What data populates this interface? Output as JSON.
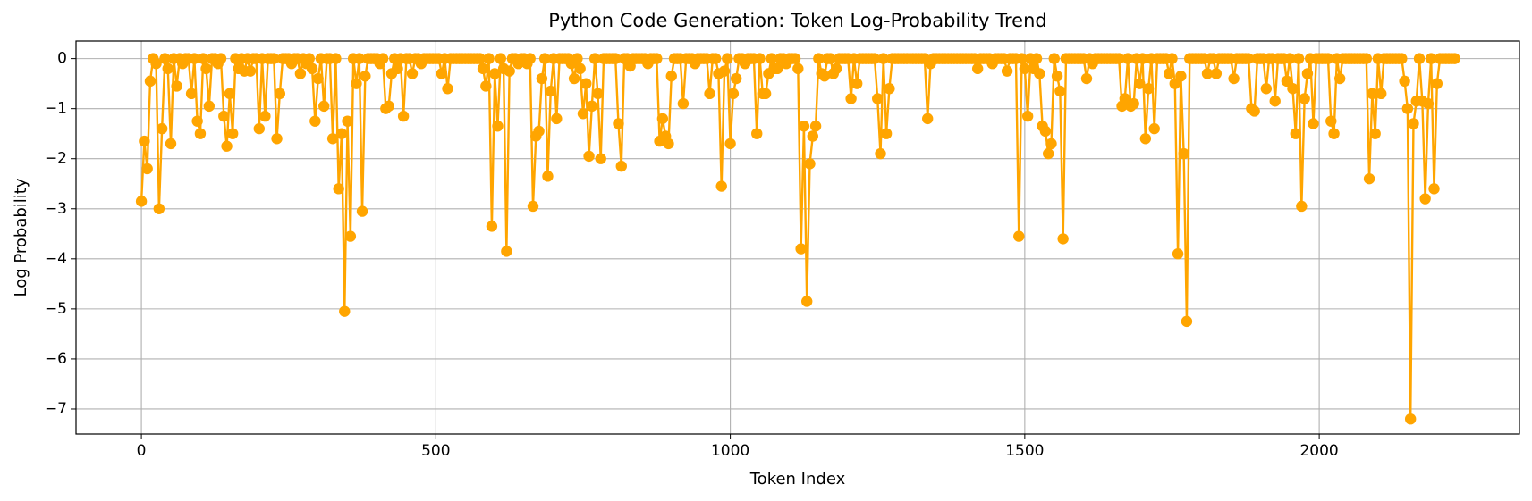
{
  "chart_data": {
    "type": "line",
    "title": "Python Code Generation: Token Log-Probability Trend",
    "x_label": "Token Index",
    "y_label": "Log Probability",
    "color": "#ffa500",
    "grid": true,
    "xlim": [
      -111,
      2340
    ],
    "ylim": [
      -7.5,
      0.35
    ],
    "xticks": [
      0,
      500,
      1000,
      1500,
      2000
    ],
    "yticks": [
      0,
      {
        "value": -1,
        "label": "−1"
      },
      {
        "value": -2,
        "label": "−2"
      },
      {
        "value": -3,
        "label": "−3"
      },
      {
        "value": -4,
        "label": "−4"
      },
      {
        "value": -5,
        "label": "−5"
      },
      {
        "value": -6,
        "label": "−6"
      },
      {
        "value": -7,
        "label": "−7"
      }
    ],
    "x": [
      0,
      5,
      10,
      15,
      20,
      25,
      30,
      35,
      40,
      45,
      50,
      55,
      60,
      65,
      70,
      75,
      80,
      85,
      90,
      95,
      100,
      105,
      110,
      115,
      120,
      125,
      130,
      135,
      140,
      145,
      150,
      155,
      160,
      165,
      170,
      175,
      180,
      185,
      190,
      195,
      200,
      205,
      210,
      215,
      220,
      225,
      230,
      235,
      240,
      245,
      250,
      255,
      260,
      265,
      270,
      275,
      280,
      285,
      290,
      295,
      300,
      305,
      310,
      315,
      320,
      325,
      330,
      335,
      340,
      345,
      350,
      355,
      360,
      365,
      370,
      375,
      380,
      385,
      390,
      395,
      400,
      405,
      410,
      415,
      420,
      425,
      430,
      435,
      440,
      445,
      450,
      455,
      460,
      465,
      470,
      475,
      480,
      485,
      490,
      495,
      500,
      505,
      510,
      515,
      520,
      525,
      530,
      535,
      540,
      545,
      550,
      555,
      560,
      565,
      570,
      575,
      580,
      585,
      590,
      595,
      600,
      605,
      610,
      615,
      620,
      625,
      630,
      635,
      640,
      645,
      650,
      655,
      660,
      665,
      670,
      675,
      680,
      685,
      690,
      695,
      700,
      705,
      710,
      715,
      720,
      725,
      730,
      735,
      740,
      745,
      750,
      755,
      760,
      765,
      770,
      775,
      780,
      785,
      790,
      795,
      800,
      805,
      810,
      815,
      820,
      825,
      830,
      835,
      840,
      845,
      850,
      855,
      860,
      865,
      870,
      875,
      880,
      885,
      890,
      895,
      900,
      905,
      910,
      915,
      920,
      925,
      930,
      935,
      940,
      945,
      950,
      955,
      960,
      965,
      970,
      975,
      980,
      985,
      990,
      995,
      1000,
      1005,
      1010,
      1015,
      1020,
      1025,
      1030,
      1035,
      1040,
      1045,
      1050,
      1055,
      1060,
      1065,
      1070,
      1075,
      1080,
      1085,
      1090,
      1095,
      1100,
      1105,
      1110,
      1115,
      1120,
      1125,
      1130,
      1135,
      1140,
      1145,
      1150,
      1155,
      1160,
      1165,
      1170,
      1175,
      1180,
      1185,
      1190,
      1195,
      1200,
      1205,
      1210,
      1215,
      1220,
      1225,
      1230,
      1235,
      1240,
      1245,
      1250,
      1255,
      1260,
      1265,
      1270,
      1275,
      1280,
      1285,
      1290,
      1295,
      1300,
      1305,
      1310,
      1315,
      1320,
      1325,
      1330,
      1335,
      1340,
      1345,
      1350,
      1355,
      1360,
      1365,
      1370,
      1375,
      1380,
      1385,
      1390,
      1395,
      1400,
      1405,
      1410,
      1415,
      1420,
      1425,
      1430,
      1435,
      1440,
      1445,
      1450,
      1455,
      1460,
      1465,
      1470,
      1475,
      1480,
      1485,
      1490,
      1495,
      1500,
      1505,
      1510,
      1515,
      1520,
      1525,
      1530,
      1535,
      1540,
      1545,
      1550,
      1555,
      1560,
      1565,
      1570,
      1575,
      1580,
      1585,
      1590,
      1595,
      1600,
      1605,
      1610,
      1615,
      1620,
      1625,
      1630,
      1635,
      1640,
      1645,
      1650,
      1655,
      1660,
      1665,
      1670,
      1675,
      1680,
      1685,
      1690,
      1695,
      1700,
      1705,
      1710,
      1715,
      1720,
      1725,
      1730,
      1735,
      1740,
      1745,
      1750,
      1755,
      1760,
      1765,
      1770,
      1775,
      1780,
      1785,
      1790,
      1795,
      1800,
      1805,
      1810,
      1815,
      1820,
      1825,
      1830,
      1835,
      1840,
      1845,
      1850,
      1855,
      1860,
      1865,
      1870,
      1875,
      1880,
      1885,
      1890,
      1895,
      1900,
      1905,
      1910,
      1915,
      1920,
      1925,
      1930,
      1935,
      1940,
      1945,
      1950,
      1955,
      1960,
      1965,
      1970,
      1975,
      1980,
      1985,
      1990,
      1995,
      2000,
      2005,
      2010,
      2015,
      2020,
      2025,
      2030,
      2035,
      2040,
      2045,
      2050,
      2055,
      2060,
      2065,
      2070,
      2075,
      2080,
      2085,
      2090,
      2095,
      2100,
      2105,
      2110,
      2115,
      2120,
      2125,
      2130,
      2135,
      2140,
      2145,
      2150,
      2155,
      2160,
      2165,
      2170,
      2175,
      2180,
      2185,
      2190,
      2195,
      2200,
      2205,
      2210,
      2215,
      2220,
      2225,
      2230
    ],
    "values": [
      -2.85,
      -1.65,
      -2.2,
      -0.45,
      0,
      -0.1,
      -3.0,
      -1.4,
      0,
      -0.2,
      -1.7,
      0,
      -0.55,
      0,
      -0.1,
      0,
      0,
      -0.7,
      0,
      -1.25,
      -1.5,
      0,
      -0.2,
      -0.95,
      0,
      0,
      -0.1,
      0,
      -1.15,
      -1.75,
      -0.7,
      -1.5,
      0,
      -0.2,
      0,
      -0.25,
      0,
      -0.25,
      0,
      0,
      -1.4,
      0,
      -1.15,
      0,
      0,
      0,
      -1.6,
      -0.7,
      0,
      0,
      0,
      -0.1,
      0,
      0,
      -0.3,
      0,
      -0.1,
      0,
      -0.2,
      -1.25,
      -0.4,
      0,
      -0.95,
      0,
      0,
      -1.6,
      0,
      -2.6,
      -1.5,
      -5.05,
      -1.25,
      -3.55,
      0,
      -0.5,
      0,
      -3.05,
      -0.35,
      0,
      0,
      0,
      0,
      -0.1,
      0,
      -1.0,
      -0.95,
      -0.3,
      0,
      -0.2,
      0,
      -1.15,
      0,
      0,
      -0.3,
      0,
      0,
      -0.1,
      0,
      0,
      0,
      0,
      0,
      0,
      -0.3,
      0,
      -0.6,
      0,
      0,
      0,
      0,
      0,
      0,
      0,
      0,
      0,
      0,
      0,
      -0.2,
      -0.55,
      0,
      -3.35,
      -0.3,
      -1.35,
      0,
      -0.2,
      -3.85,
      -0.25,
      0,
      0,
      -0.1,
      0,
      0,
      -0.1,
      0,
      -2.95,
      -1.55,
      -1.45,
      -0.4,
      0,
      -2.35,
      -0.65,
      0,
      -1.2,
      0,
      0,
      0,
      0,
      -0.1,
      -0.4,
      0,
      -0.2,
      -1.1,
      -0.5,
      -1.95,
      -0.95,
      0,
      -0.7,
      -2.0,
      0,
      0,
      0,
      0,
      0,
      -1.3,
      -2.15,
      0,
      0,
      -0.15,
      0,
      0,
      0,
      0,
      0,
      -0.1,
      0,
      0,
      0,
      -1.65,
      -1.2,
      -1.55,
      -1.7,
      -0.35,
      0,
      0,
      0,
      -0.9,
      0,
      0,
      0,
      -0.1,
      0,
      0,
      0,
      0,
      -0.7,
      0,
      0,
      -0.3,
      -2.55,
      -0.25,
      0,
      -1.7,
      -0.7,
      -0.4,
      0,
      0,
      -0.1,
      0,
      0,
      0,
      -1.5,
      0,
      -0.7,
      -0.7,
      -0.3,
      0,
      -0.2,
      -0.2,
      0,
      0,
      -0.1,
      0,
      0,
      0,
      -0.2,
      -3.8,
      -1.35,
      -4.85,
      -2.1,
      -1.55,
      -1.35,
      0,
      -0.3,
      -0.35,
      0,
      0,
      -0.3,
      -0.2,
      0,
      0,
      0,
      0,
      -0.8,
      0,
      -0.5,
      0,
      0,
      0,
      0,
      0,
      0,
      -0.8,
      -1.9,
      0,
      -1.5,
      -0.6,
      0,
      0,
      0,
      0,
      0,
      0,
      0,
      0,
      0,
      0,
      0,
      0,
      -1.2,
      -0.1,
      0,
      0,
      0,
      0,
      0,
      0,
      0,
      0,
      0,
      0,
      0,
      0,
      0,
      0,
      0,
      -0.2,
      0,
      0,
      0,
      0,
      -0.1,
      0,
      0,
      0,
      0,
      -0.25,
      0,
      0,
      0,
      -3.55,
      0,
      -0.2,
      -1.15,
      0,
      -0.2,
      0,
      -0.3,
      -1.35,
      -1.45,
      -1.9,
      -1.7,
      0,
      -0.35,
      -0.65,
      -3.6,
      0,
      0,
      0,
      0,
      0,
      0,
      0,
      -0.4,
      0,
      -0.1,
      0,
      0,
      0,
      0,
      0,
      0,
      0,
      0,
      0,
      -0.95,
      -0.8,
      0,
      -0.95,
      -0.9,
      0,
      -0.5,
      0,
      -1.6,
      -0.6,
      0,
      -1.4,
      0,
      0,
      0,
      0,
      -0.3,
      0,
      -0.5,
      -3.9,
      -0.35,
      -1.9,
      -5.25,
      0,
      0,
      0,
      0,
      0,
      0,
      -0.3,
      0,
      0,
      -0.3,
      0,
      0,
      0,
      0,
      0,
      -0.4,
      0,
      0,
      0,
      0,
      0,
      -1.0,
      -1.05,
      0,
      0,
      0,
      -0.6,
      0,
      0,
      -0.85,
      0,
      0,
      0,
      -0.45,
      0,
      -0.6,
      -1.5,
      0,
      -2.95,
      -0.8,
      -0.3,
      0,
      -1.3,
      0,
      0,
      0,
      0,
      0,
      -1.25,
      -1.5,
      0,
      -0.4,
      0,
      0,
      0,
      0,
      0,
      0,
      0,
      0,
      0,
      -2.4,
      -0.7,
      -1.5,
      0,
      -0.7,
      0,
      0,
      0,
      0,
      0,
      0,
      0,
      -0.45,
      -1.0,
      -7.2,
      -1.3,
      -0.85,
      0,
      -0.85,
      -2.8,
      -0.9,
      0,
      -2.6,
      -0.5,
      0,
      0,
      0,
      0,
      0,
      0
    ]
  }
}
